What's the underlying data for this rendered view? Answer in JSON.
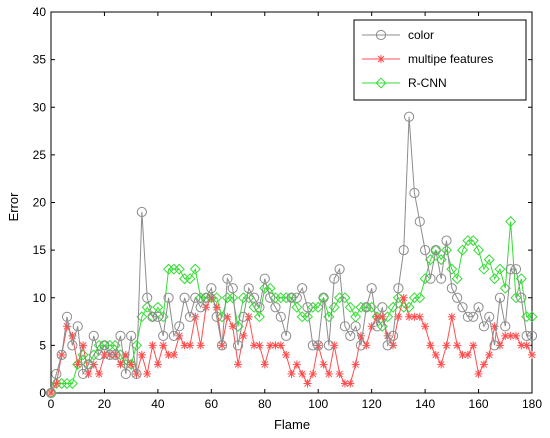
{
  "chart_data": {
    "type": "line",
    "title": "",
    "xlabel": "Flame",
    "ylabel": "Error",
    "xlim": [
      0,
      180
    ],
    "ylim": [
      0,
      40
    ],
    "x_ticks": [
      "0",
      "20",
      "40",
      "60",
      "80",
      "100",
      "120",
      "140",
      "160",
      "180"
    ],
    "y_ticks": [
      "0",
      "5",
      "10",
      "15",
      "20",
      "25",
      "30",
      "35",
      "40"
    ],
    "grid": false,
    "legend_position": "top-right",
    "series": [
      {
        "name": "color",
        "color": "#8c8c8c",
        "marker": "circle",
        "x": [
          0,
          2,
          4,
          6,
          8,
          10,
          12,
          14,
          16,
          18,
          20,
          22,
          24,
          26,
          28,
          30,
          32,
          34,
          36,
          38,
          40,
          42,
          44,
          46,
          48,
          50,
          52,
          54,
          56,
          58,
          60,
          62,
          64,
          66,
          68,
          70,
          72,
          74,
          76,
          78,
          80,
          82,
          84,
          86,
          88,
          90,
          92,
          94,
          96,
          98,
          100,
          102,
          104,
          106,
          108,
          110,
          112,
          114,
          116,
          118,
          120,
          122,
          124,
          126,
          128,
          130,
          132,
          134,
          136,
          138,
          140,
          142,
          144,
          146,
          148,
          150,
          152,
          154,
          156,
          158,
          160,
          162,
          164,
          166,
          168,
          170,
          172,
          174,
          176,
          178,
          180
        ],
        "y": [
          0,
          2,
          4,
          8,
          5,
          7,
          2,
          3,
          6,
          4,
          5,
          4,
          4,
          6,
          2,
          6,
          2,
          19,
          10,
          8,
          8,
          6,
          10,
          6,
          7,
          10,
          8,
          10,
          9,
          10,
          11,
          8,
          5,
          12,
          11,
          5,
          8,
          11,
          10,
          9,
          12,
          10,
          9,
          8,
          6,
          10,
          10,
          11,
          9,
          5,
          5,
          10,
          5,
          12,
          13,
          7,
          6,
          7,
          5,
          9,
          11,
          7,
          9,
          5,
          6,
          11,
          15,
          29,
          21,
          18,
          15,
          12,
          15,
          12,
          16,
          11,
          10,
          9,
          8,
          8,
          9,
          7,
          8,
          5,
          10,
          7,
          13,
          13,
          10,
          6,
          6
        ]
      },
      {
        "name": "multipe features",
        "color": "#ff4d4d",
        "marker": "star",
        "x": [
          0,
          2,
          4,
          6,
          8,
          10,
          12,
          14,
          16,
          18,
          20,
          22,
          24,
          26,
          28,
          30,
          32,
          34,
          36,
          38,
          40,
          42,
          44,
          46,
          48,
          50,
          52,
          54,
          56,
          58,
          60,
          62,
          64,
          66,
          68,
          70,
          72,
          74,
          76,
          78,
          80,
          82,
          84,
          86,
          88,
          90,
          92,
          94,
          96,
          98,
          100,
          102,
          104,
          106,
          108,
          110,
          112,
          114,
          116,
          118,
          120,
          122,
          124,
          126,
          128,
          130,
          132,
          134,
          136,
          138,
          140,
          142,
          144,
          146,
          148,
          150,
          152,
          154,
          156,
          158,
          160,
          162,
          164,
          166,
          168,
          170,
          172,
          174,
          176,
          178,
          180
        ],
        "y": [
          0,
          1,
          4,
          7,
          6,
          3,
          5,
          2,
          3,
          2,
          4,
          4,
          4,
          3,
          4,
          3,
          2,
          4,
          2,
          5,
          3,
          5,
          4,
          4,
          6,
          5,
          5,
          8,
          5,
          9,
          10,
          9,
          5,
          8,
          7,
          3,
          6,
          8,
          5,
          5,
          3,
          5,
          5,
          5,
          4,
          2,
          3,
          2,
          1,
          2,
          5,
          3,
          2,
          5,
          2,
          1,
          1,
          3,
          6,
          5,
          7,
          8,
          8,
          6,
          5,
          8,
          10,
          8,
          8,
          8,
          7,
          5,
          4,
          3,
          5,
          8,
          5,
          4,
          4,
          5,
          2,
          3,
          4,
          7,
          5,
          6,
          6,
          6,
          5,
          5,
          4
        ]
      },
      {
        "name": "R-CNN",
        "color": "#33dd33",
        "marker": "diamond",
        "x": [
          0,
          2,
          4,
          6,
          8,
          10,
          12,
          14,
          16,
          18,
          20,
          22,
          24,
          26,
          28,
          30,
          32,
          34,
          36,
          38,
          40,
          42,
          44,
          46,
          48,
          50,
          52,
          54,
          56,
          58,
          60,
          62,
          64,
          66,
          68,
          70,
          72,
          74,
          76,
          78,
          80,
          82,
          84,
          86,
          88,
          90,
          92,
          94,
          96,
          98,
          100,
          102,
          104,
          106,
          108,
          110,
          112,
          114,
          116,
          118,
          120,
          122,
          124,
          126,
          128,
          130,
          132,
          134,
          136,
          138,
          140,
          142,
          144,
          146,
          148,
          150,
          152,
          154,
          156,
          158,
          160,
          162,
          164,
          166,
          168,
          170,
          172,
          174,
          176,
          178,
          180
        ],
        "y": [
          0,
          1,
          1,
          1,
          1,
          3,
          4,
          3,
          4,
          5,
          5,
          5,
          5,
          4,
          3,
          3,
          5,
          8,
          9,
          8,
          9,
          8,
          13,
          13,
          13,
          12,
          12,
          13,
          10,
          10,
          10,
          10,
          8,
          10,
          10,
          7,
          10,
          10,
          9,
          8,
          11,
          11,
          10,
          10,
          10,
          10,
          9,
          8,
          8,
          9,
          9,
          10,
          8,
          9,
          10,
          10,
          9,
          8,
          9,
          9,
          9,
          8,
          7,
          8,
          9,
          10,
          9,
          9,
          10,
          10,
          12,
          14,
          15,
          14,
          15,
          13,
          12,
          15,
          16,
          16,
          15,
          13,
          14,
          12,
          13,
          11,
          18,
          10,
          12,
          8,
          8
        ]
      }
    ]
  }
}
